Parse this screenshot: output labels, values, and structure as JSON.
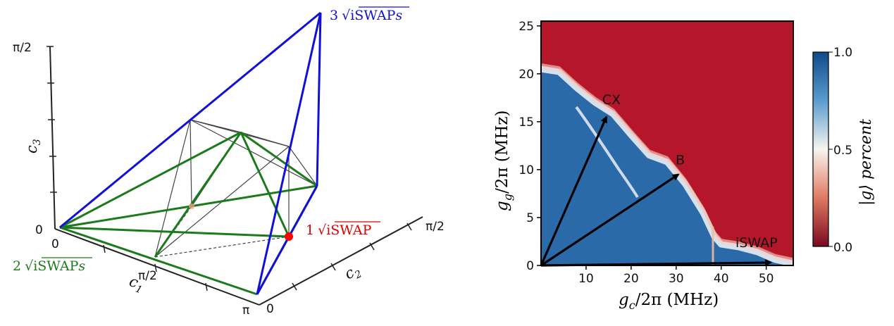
{
  "polytope": {
    "axis_c1": {
      "label": "c",
      "sub": "1",
      "ticks": [
        "0",
        "π/2",
        "π"
      ]
    },
    "axis_c2": {
      "label": "c",
      "sub": "2",
      "ticks": [
        "0",
        "π/2"
      ]
    },
    "axis_c3": {
      "label": "c",
      "sub": "3",
      "ticks": [
        "0",
        "π/2"
      ]
    },
    "label_1": {
      "coef": "1",
      "gate": "iSWAP",
      "suffix": "",
      "color": "#e00000"
    },
    "label_2": {
      "coef": "2",
      "gate": "iSWAP",
      "suffix": "s",
      "color": "#1b7a1b"
    },
    "label_3": {
      "coef": "3",
      "gate": "iSWAP",
      "suffix": "s",
      "color": "#1010d8"
    }
  },
  "chart_data": {
    "type": "heatmap",
    "xlabel_main": "g",
    "xlabel_sub": "c",
    "xlabel_rest": "/2π  (MHz)",
    "ylabel_main": "g",
    "ylabel_sub": "g",
    "ylabel_rest": "/2π  (MHz)",
    "x_ticks": [
      10,
      20,
      30,
      40,
      50
    ],
    "y_ticks": [
      0,
      5,
      10,
      15,
      20,
      25
    ],
    "xlim": [
      0,
      56
    ],
    "ylim": [
      0,
      25.5
    ],
    "colorbar": {
      "label": "|g⟩ percent",
      "min": 0.0,
      "max": 1.0,
      "ticks": [
        "1.0",
        "0.5",
        "0.0"
      ]
    },
    "colors": {
      "high": "#1c5d9e",
      "mid": "#f7f4ef",
      "low": "#b5162a"
    },
    "boundary": [
      [
        0,
        20.5
      ],
      [
        4,
        20.2
      ],
      [
        8,
        18.5
      ],
      [
        12,
        17.0
      ],
      [
        16,
        15.8
      ],
      [
        20,
        13.6
      ],
      [
        24,
        11.5
      ],
      [
        28,
        10.8
      ],
      [
        32,
        8.5
      ],
      [
        36,
        5.5
      ],
      [
        38.5,
        3.0
      ],
      [
        40,
        2.2
      ],
      [
        44,
        1.9
      ],
      [
        48,
        1.4
      ],
      [
        52,
        0.6
      ],
      [
        56,
        0.2
      ]
    ],
    "vectors": [
      {
        "label": "CX",
        "to": [
          14.5,
          15.5
        ]
      },
      {
        "label": "B",
        "to": [
          30.5,
          9.5
        ]
      },
      {
        "label": "iSWAP",
        "to": [
          51,
          0.3
        ]
      }
    ]
  }
}
